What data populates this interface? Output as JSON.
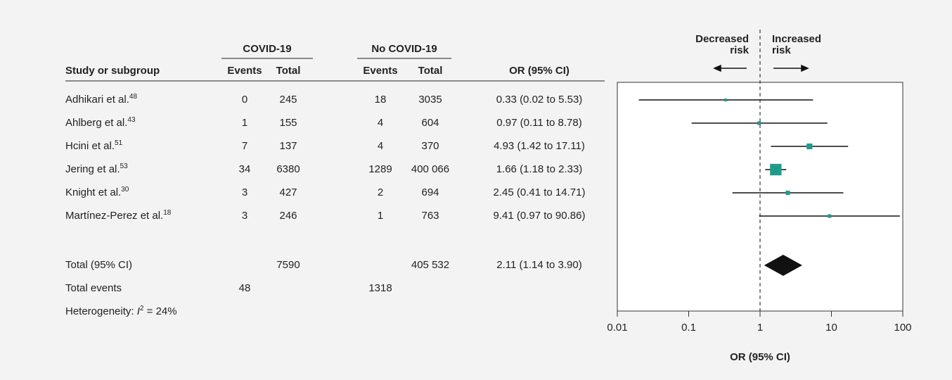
{
  "chart_data": {
    "type": "forest",
    "groups": [
      "COVID-19",
      "No COVID-19"
    ],
    "columns": [
      "Study or subgroup",
      "Events",
      "Total",
      "Events",
      "Total",
      "OR (95% CI)"
    ],
    "color": "#1f9b8c",
    "summary_color": "#111111",
    "studies": [
      {
        "name": "Adhikari et al.",
        "ref": "48",
        "covid_events": "0",
        "covid_total": "245",
        "no_events": "18",
        "no_total": "3035",
        "or_text": "0.33 (0.02 to 5.53)",
        "or": 0.33,
        "lo": 0.02,
        "hi": 5.53,
        "weight": 3.8
      },
      {
        "name": "Ahlberg et al.",
        "ref": "43",
        "covid_events": "1",
        "covid_total": "155",
        "no_events": "4",
        "no_total": "604",
        "or_text": "0.97 (0.11 to 8.78)",
        "or": 0.97,
        "lo": 0.11,
        "hi": 8.78,
        "weight": 5.9
      },
      {
        "name": "Hcini et al.",
        "ref": "51",
        "covid_events": "7",
        "covid_total": "137",
        "no_events": "4",
        "no_total": "370",
        "or_text": "4.93 (1.42 to 17.11)",
        "or": 4.93,
        "lo": 1.42,
        "hi": 17.11,
        "weight": 15.2
      },
      {
        "name": "Jering et al.",
        "ref": "53",
        "covid_events": "34",
        "covid_total": "6380",
        "no_events": "1289",
        "no_total": "400 066",
        "or_text": "1.66 (1.18 to 2.33)",
        "or": 1.66,
        "lo": 1.18,
        "hi": 2.33,
        "weight": 60.7
      },
      {
        "name": "Knight et al.",
        "ref": "30",
        "covid_events": "3",
        "covid_total": "427",
        "no_events": "2",
        "no_total": "694",
        "or_text": "2.45 (0.41 to 14.71)",
        "or": 2.45,
        "lo": 0.41,
        "hi": 14.71,
        "weight": 8.5
      },
      {
        "name": "Martínez-Perez et al.",
        "ref": "18",
        "covid_events": "3",
        "covid_total": "246",
        "no_events": "1",
        "no_total": "763",
        "or_text": "9.41 (0.97 to 90.86)",
        "or": 9.41,
        "lo": 0.97,
        "hi": 90.86,
        "weight": 5.9
      }
    ],
    "total": {
      "name": "Total (95% CI)",
      "covid_total": "7590",
      "no_total": "405 532",
      "or_text": "2.11 (1.14 to 3.90)",
      "or": 2.11,
      "lo": 1.14,
      "hi": 3.9
    },
    "total_events": {
      "name": "Total events",
      "covid": "48",
      "no": "1318"
    },
    "heterogeneity": {
      "prefix": "Heterogeneity: ",
      "symbol": "I",
      "power": "2",
      "suffix": " = 24%"
    },
    "decreased": [
      "Decreased",
      "risk"
    ],
    "increased": [
      "Increased",
      "risk"
    ],
    "xlabel": "OR (95% CI)",
    "log_x": true,
    "xlim": [
      0.01,
      100
    ],
    "xticks": [
      0.01,
      0.1,
      1,
      10,
      100
    ],
    "ref_line": 1
  }
}
